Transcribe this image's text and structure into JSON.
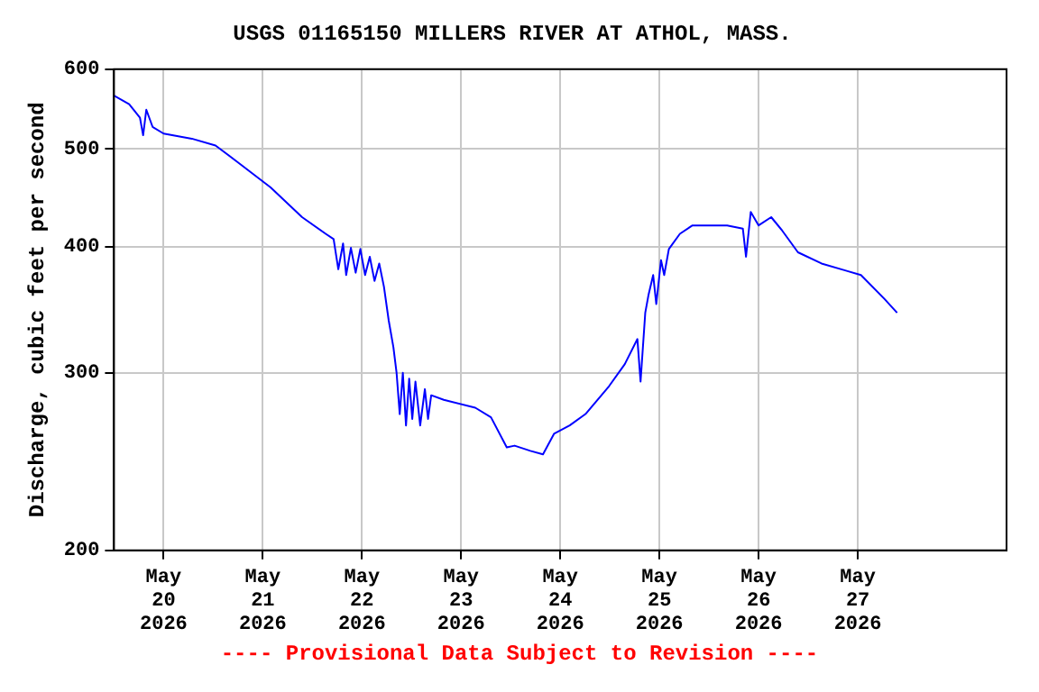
{
  "chart_data": {
    "type": "line",
    "title": "USGS 01165150 MILLERS RIVER AT ATHOL, MASS.",
    "ylabel": "Discharge, cubic feet per second",
    "annotations": [
      "---- Provisional Data Subject to Revision ----"
    ],
    "x": [
      "2026-05-19T12:00",
      "2026-05-19T15:40",
      "2026-05-19T18:17",
      "2026-05-19T19:03",
      "2026-05-19T19:49",
      "2026-05-19T21:20",
      "2026-05-20T00:00",
      "2026-05-20T06:50",
      "2026-05-20T12:34",
      "2026-05-20T18:17",
      "2026-05-21T01:54",
      "2026-05-21T09:31",
      "2026-05-21T15:14",
      "2026-05-21T17:09",
      "2026-05-21T18:17",
      "2026-05-21T19:26",
      "2026-05-21T20:11",
      "2026-05-21T21:20",
      "2026-05-21T22:29",
      "2026-05-21T23:37",
      "2026-05-22T00:46",
      "2026-05-22T01:54",
      "2026-05-22T03:03",
      "2026-05-22T04:11",
      "2026-05-22T05:20",
      "2026-05-22T06:29",
      "2026-05-22T07:37",
      "2026-05-22T08:23",
      "2026-05-22T09:09",
      "2026-05-22T09:54",
      "2026-05-22T10:40",
      "2026-05-22T11:26",
      "2026-05-22T12:11",
      "2026-05-22T12:57",
      "2026-05-22T14:06",
      "2026-05-22T15:14",
      "2026-05-22T16:00",
      "2026-05-22T16:46",
      "2026-05-22T19:49",
      "2026-05-23T03:26",
      "2026-05-23T07:14",
      "2026-05-23T11:03",
      "2026-05-23T12:57",
      "2026-05-23T16:46",
      "2026-05-23T19:49",
      "2026-05-23T22:29",
      "2026-05-24T02:17",
      "2026-05-24T06:06",
      "2026-05-24T11:49",
      "2026-05-24T15:37",
      "2026-05-24T18:40",
      "2026-05-24T19:26",
      "2026-05-24T20:34",
      "2026-05-24T21:20",
      "2026-05-24T22:29",
      "2026-05-24T23:14",
      "2026-05-25T00:23",
      "2026-05-25T01:09",
      "2026-05-25T02:17",
      "2026-05-25T04:57",
      "2026-05-25T08:00",
      "2026-05-25T16:23",
      "2026-05-25T20:11",
      "2026-05-25T20:57",
      "2026-05-25T22:06",
      "2026-05-26T00:00",
      "2026-05-26T03:03",
      "2026-05-26T05:43",
      "2026-05-26T09:31",
      "2026-05-26T15:14",
      "2026-05-26T20:57",
      "2026-05-27T00:46",
      "2026-05-27T06:29",
      "2026-05-27T09:31"
    ],
    "series": [
      {
        "color": "#0000ff",
        "values": [
          565,
          554,
          537,
          516,
          547,
          526,
          518,
          512,
          504,
          484,
          458,
          428,
          412,
          407,
          380,
          403,
          375,
          399,
          377,
          398,
          375,
          391,
          370,
          385,
          365,
          338,
          318,
          300,
          273,
          300,
          266,
          296,
          270,
          294,
          266,
          289,
          270,
          285,
          282,
          277,
          271,
          253,
          254,
          251,
          249,
          261,
          266,
          273,
          291,
          306,
          324,
          294,
          344,
          358,
          375,
          351,
          388,
          375,
          398,
          412,
          420,
          420,
          417,
          391,
          433,
          420,
          428,
          415,
          395,
          385,
          379,
          375,
          355,
          344
        ]
      }
    ],
    "xlim": [
      "2026-05-19T12:00",
      "2026-05-28T12:00"
    ],
    "xticks": [
      {
        "value": "2026-05-20",
        "label": "May 20 2026"
      },
      {
        "value": "2026-05-21",
        "label": "May 21 2026"
      },
      {
        "value": "2026-05-22",
        "label": "May 22 2026"
      },
      {
        "value": "2026-05-23",
        "label": "May 23 2026"
      },
      {
        "value": "2026-05-24",
        "label": "May 24 2026"
      },
      {
        "value": "2026-05-25",
        "label": "May 25 2026"
      },
      {
        "value": "2026-05-26",
        "label": "May 26 2026"
      },
      {
        "value": "2026-05-27",
        "label": "May 27 2026"
      }
    ],
    "ylim": [
      200,
      600
    ],
    "yticks": [
      200,
      300,
      400,
      500,
      600
    ],
    "log": true,
    "grid": true,
    "legend": false,
    "marker": "none",
    "line_style": "solid"
  }
}
